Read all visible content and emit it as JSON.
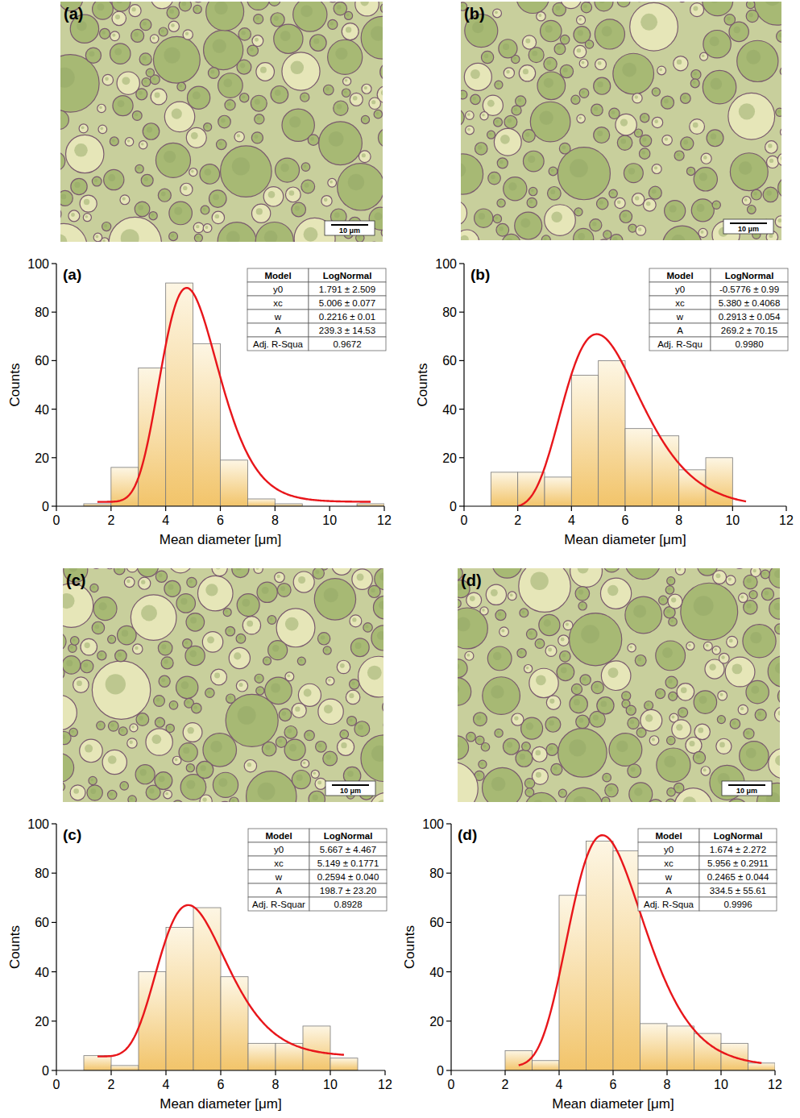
{
  "chart_data": [
    {
      "type": "histogram",
      "title": "(a)",
      "image_label": "(a)",
      "scale_bar": "10 μm",
      "x_label": "Mean diameter [μm]",
      "y_label": "Counts",
      "bins": [
        1,
        2,
        3,
        4,
        5,
        6,
        7,
        8,
        9,
        10,
        11,
        12
      ],
      "counts": [
        1,
        16,
        57,
        92,
        67,
        19,
        3,
        1,
        0,
        0,
        1
      ],
      "color": "#f2c46a",
      "xlim": [
        0,
        12
      ],
      "xticks": [
        0,
        2,
        4,
        6,
        8,
        10,
        12
      ],
      "ylim": [
        0,
        100
      ],
      "yticks": [
        0,
        20,
        40,
        60,
        80,
        100
      ],
      "fit": {
        "model_header": "Model",
        "model": "LogNormal",
        "color": "#e8161b",
        "x_range": [
          1.5,
          11.5
        ],
        "params": [
          {
            "name": "y0",
            "value": 1.791,
            "error": 2.509,
            "label": "1.791 ± 2.509"
          },
          {
            "name": "xc",
            "value": 5.006,
            "error": 0.077,
            "label": "5.006 ± 0.077"
          },
          {
            "name": "w",
            "value": 0.2216,
            "error": 0.01,
            "label": "0.2216 ± 0.01"
          },
          {
            "name": "A",
            "value": 239.3,
            "error": 14.53,
            "label": "239.3 ± 14.53"
          }
        ],
        "r2_name": "Adj. R-Squa",
        "r2": {
          "value": 0.9672,
          "label": "0.9672"
        }
      }
    },
    {
      "type": "histogram",
      "title": "(b)",
      "image_label": "(b)",
      "scale_bar": "10 μm",
      "x_label": "Mean diameter [μm]",
      "y_label": "Counts",
      "bins": [
        1,
        2,
        3,
        4,
        5,
        6,
        7,
        8,
        9,
        10
      ],
      "counts": [
        14,
        14,
        12,
        54,
        60,
        32,
        29,
        15,
        20
      ],
      "color": "#f2c46a",
      "xlim": [
        0,
        12
      ],
      "xticks": [
        0,
        2,
        4,
        6,
        8,
        10,
        12
      ],
      "ylim": [
        0,
        100
      ],
      "yticks": [
        0,
        20,
        40,
        60,
        80,
        100
      ],
      "fit": {
        "model_header": "Model",
        "model": "LogNormal",
        "color": "#e8161b",
        "x_range": [
          2,
          10.5
        ],
        "params": [
          {
            "name": "y0",
            "value": -0.5776,
            "error": 0.99,
            "label": "-0.5776 ± 0.99"
          },
          {
            "name": "xc",
            "value": 5.38,
            "error": 0.4068,
            "label": "5.380 ± 0.4068"
          },
          {
            "name": "w",
            "value": 0.2913,
            "error": 0.054,
            "label": "0.2913 ± 0.054"
          },
          {
            "name": "A",
            "value": 269.2,
            "error": 70.15,
            "label": "269.2 ± 70.15"
          }
        ],
        "r2_name": "Adj. R-Squ",
        "r2": {
          "value": 0.998,
          "label": "0.9980"
        }
      }
    },
    {
      "type": "histogram",
      "title": "(c)",
      "image_label": "(c)",
      "scale_bar": "10 μm",
      "x_label": "Mean diameter [μm]",
      "y_label": "Counts",
      "bins": [
        1,
        2,
        3,
        4,
        5,
        6,
        7,
        8,
        9,
        10,
        11
      ],
      "counts": [
        6,
        2,
        40,
        58,
        66,
        38,
        11,
        11,
        18,
        5
      ],
      "color": "#f2c46a",
      "xlim": [
        0,
        12
      ],
      "xticks": [
        0,
        2,
        4,
        6,
        8,
        10,
        12
      ],
      "ylim": [
        0,
        100
      ],
      "yticks": [
        0,
        20,
        40,
        60,
        80,
        100
      ],
      "fit": {
        "model_header": "Model",
        "model": "LogNormal",
        "color": "#e8161b",
        "x_range": [
          1.5,
          10.5
        ],
        "params": [
          {
            "name": "y0",
            "value": 5.667,
            "error": 4.467,
            "label": "5.667 ± 4.467"
          },
          {
            "name": "xc",
            "value": 5.149,
            "error": 0.1771,
            "label": "5.149 ± 0.1771"
          },
          {
            "name": "w",
            "value": 0.2594,
            "error": 0.04,
            "label": "0.2594 ± 0.040"
          },
          {
            "name": "A",
            "value": 198.7,
            "error": 23.2,
            "label": "198.7 ± 23.20"
          }
        ],
        "r2_name": "Adj. R-Squar",
        "r2": {
          "value": 0.8928,
          "label": "0.8928"
        }
      }
    },
    {
      "type": "histogram",
      "title": "(d)",
      "image_label": "(d)",
      "scale_bar": "10 μm",
      "x_label": "Mean diameter [μm]",
      "y_label": "Counts",
      "bins": [
        2,
        3,
        4,
        5,
        6,
        7,
        8,
        9,
        10,
        11,
        12
      ],
      "counts": [
        8,
        4,
        71,
        93,
        89,
        19,
        18,
        15,
        11,
        3
      ],
      "color": "#f2c46a",
      "xlim": [
        0,
        12
      ],
      "xticks": [
        0,
        2,
        4,
        6,
        8,
        10,
        12
      ],
      "ylim": [
        0,
        100
      ],
      "yticks": [
        0,
        20,
        40,
        60,
        80,
        100
      ],
      "fit": {
        "model_header": "Model",
        "model": "LogNormal",
        "color": "#e8161b",
        "x_range": [
          2.5,
          11.5
        ],
        "params": [
          {
            "name": "y0",
            "value": 1.674,
            "error": 2.272,
            "label": "1.674 ± 2.272"
          },
          {
            "name": "xc",
            "value": 5.956,
            "error": 0.2911,
            "label": "5.956 ± 0.2911"
          },
          {
            "name": "w",
            "value": 0.2465,
            "error": 0.044,
            "label": "0.2465 ± 0.044"
          },
          {
            "name": "A",
            "value": 334.5,
            "error": 55.61,
            "label": "334.5 ± 55.61"
          }
        ],
        "r2_name": "Adj. R-Squa",
        "r2": {
          "value": 0.9996,
          "label": "0.9996"
        }
      }
    }
  ]
}
